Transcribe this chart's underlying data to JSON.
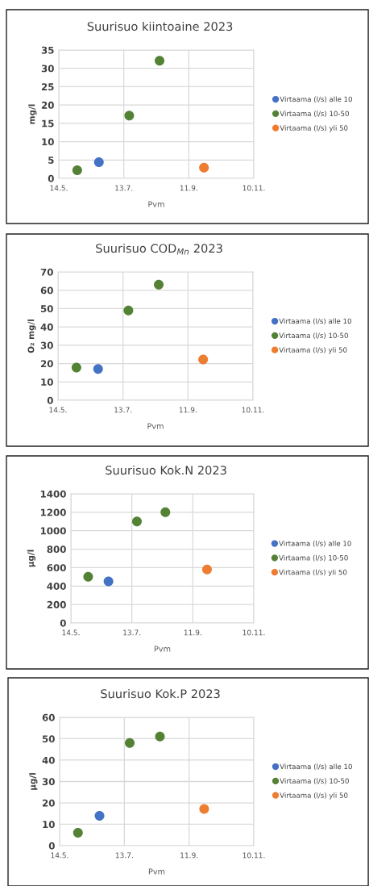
{
  "chart_data": [
    {
      "type": "scatter",
      "title": "Suurisuo kiintoaine 2023",
      "xlabel": "Pvm",
      "ylabel": "mg/l",
      "xlim": [
        "2023-05-14",
        "2023-11-10"
      ],
      "xticks": [
        {
          "value": "2023-05-14",
          "label": "14.5."
        },
        {
          "value": "2023-07-13",
          "label": "13.7."
        },
        {
          "value": "2023-09-11",
          "label": "11.9."
        },
        {
          "value": "2023-11-10",
          "label": "10.11."
        }
      ],
      "ylim": [
        0,
        35
      ],
      "yticks": [
        0,
        5,
        10,
        15,
        20,
        25,
        30,
        35
      ],
      "grid": true,
      "legend": "right",
      "marker": "circle",
      "series": [
        {
          "name": "Virtaama (l/s) alle 10",
          "color": "#4472c4",
          "x": [
            "2023-06-20"
          ],
          "values": [
            4.4
          ]
        },
        {
          "name": "Virtaama (l/s) 10-50",
          "color": "#548235",
          "x": [
            "2023-05-31",
            "2023-07-18",
            "2023-08-15"
          ],
          "values": [
            2.2,
            17.1,
            32.1
          ]
        },
        {
          "name": "Virtaama (l/s) yli 50",
          "color": "#ed7d31",
          "x": [
            "2023-09-25"
          ],
          "values": [
            2.9
          ]
        }
      ]
    },
    {
      "type": "scatter",
      "title": "Suurisuo COD$_{Mn}$ 2023",
      "xlabel": "Pvm",
      "ylabel": "O₂ mg/l",
      "xlim": [
        "2023-05-14",
        "2023-11-10"
      ],
      "xticks": [
        {
          "value": "2023-05-14",
          "label": "14.5."
        },
        {
          "value": "2023-07-13",
          "label": "13.7."
        },
        {
          "value": "2023-09-11",
          "label": "11.9."
        },
        {
          "value": "2023-11-10",
          "label": "10.11."
        }
      ],
      "ylim": [
        0,
        70
      ],
      "yticks": [
        0,
        10,
        20,
        30,
        40,
        50,
        60,
        70
      ],
      "grid": true,
      "legend": "right",
      "marker": "circle",
      "series": [
        {
          "name": "Virtaama (l/s) alle 10",
          "color": "#4472c4",
          "x": [
            "2023-06-20"
          ],
          "values": [
            17.1
          ]
        },
        {
          "name": "Virtaama (l/s) 10-50",
          "color": "#548235",
          "x": [
            "2023-05-31",
            "2023-07-18",
            "2023-08-15"
          ],
          "values": [
            17.8,
            49,
            63.1
          ]
        },
        {
          "name": "Virtaama (l/s) yli 50",
          "color": "#ed7d31",
          "x": [
            "2023-09-25"
          ],
          "values": [
            22.2
          ]
        }
      ]
    },
    {
      "type": "scatter",
      "title": "Suurisuo Kok.N 2023",
      "xlabel": "Pvm",
      "ylabel": "µg/l",
      "xlim": [
        "2023-05-14",
        "2023-11-10"
      ],
      "xticks": [
        {
          "value": "2023-05-14",
          "label": "14.5."
        },
        {
          "value": "2023-07-13",
          "label": "13.7."
        },
        {
          "value": "2023-09-11",
          "label": "11.9."
        },
        {
          "value": "2023-11-10",
          "label": "10.11."
        }
      ],
      "ylim": [
        0,
        1400
      ],
      "yticks": [
        0,
        200,
        400,
        600,
        800,
        1000,
        1200,
        1400
      ],
      "grid": true,
      "legend": "right",
      "marker": "circle",
      "series": [
        {
          "name": "Virtaama (l/s) alle 10",
          "color": "#4472c4",
          "x": [
            "2023-06-20"
          ],
          "values": [
            450
          ]
        },
        {
          "name": "Virtaama (l/s) 10-50",
          "color": "#548235",
          "x": [
            "2023-05-31",
            "2023-07-18",
            "2023-08-15"
          ],
          "values": [
            500,
            1100,
            1200
          ]
        },
        {
          "name": "Virtaama (l/s) yli 50",
          "color": "#ed7d31",
          "x": [
            "2023-09-25"
          ],
          "values": [
            580
          ]
        }
      ]
    },
    {
      "type": "scatter",
      "title": "Suurisuo Kok.P 2023",
      "xlabel": "Pvm",
      "ylabel": "µg/l",
      "xlim": [
        "2023-05-14",
        "2023-11-10"
      ],
      "xticks": [
        {
          "value": "2023-05-14",
          "label": "14.5."
        },
        {
          "value": "2023-07-13",
          "label": "13.7."
        },
        {
          "value": "2023-09-11",
          "label": "11.9."
        },
        {
          "value": "2023-11-10",
          "label": "10.11."
        }
      ],
      "ylim": [
        0,
        60
      ],
      "yticks": [
        0,
        10,
        20,
        30,
        40,
        50,
        60
      ],
      "grid": true,
      "legend": "right",
      "marker": "circle",
      "series": [
        {
          "name": "Virtaama (l/s) alle 10",
          "color": "#4472c4",
          "x": [
            "2023-06-20"
          ],
          "values": [
            14
          ]
        },
        {
          "name": "Virtaama (l/s) 10-50",
          "color": "#548235",
          "x": [
            "2023-05-31",
            "2023-07-18",
            "2023-08-15"
          ],
          "values": [
            6,
            48,
            51
          ]
        },
        {
          "name": "Virtaama (l/s) yli 50",
          "color": "#ed7d31",
          "x": [
            "2023-09-25"
          ],
          "values": [
            17.2
          ]
        }
      ]
    }
  ]
}
